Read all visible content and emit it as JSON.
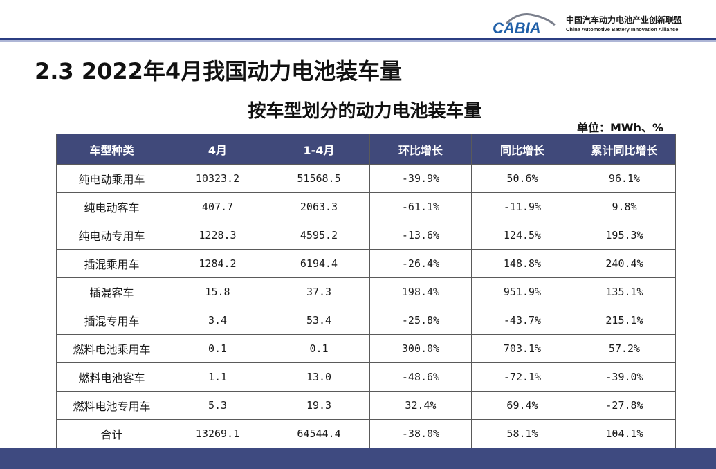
{
  "header": {
    "logo_mark": "CABIA",
    "logo_cn": "中国汽车动力电池产业创新联盟",
    "logo_en": "China Automotive Battery Innovation Alliance"
  },
  "slide_title": "2.3  2022年4月我国动力电池装车量",
  "table_title": "按车型划分的动力电池装车量",
  "unit": "单位：MWh、%",
  "table": {
    "columns": [
      "车型种类",
      "4月",
      "1-4月",
      "环比增长",
      "同比增长",
      "累计同比增长"
    ],
    "rows": [
      [
        "纯电动乘用车",
        "10323.2",
        "51568.5",
        "-39.9%",
        "50.6%",
        "96.1%"
      ],
      [
        "纯电动客车",
        "407.7",
        "2063.3",
        "-61.1%",
        "-11.9%",
        "9.8%"
      ],
      [
        "纯电动专用车",
        "1228.3",
        "4595.2",
        "-13.6%",
        "124.5%",
        "195.3%"
      ],
      [
        "插混乘用车",
        "1284.2",
        "6194.4",
        "-26.4%",
        "148.8%",
        "240.4%"
      ],
      [
        "插混客车",
        "15.8",
        "37.3",
        "198.4%",
        "951.9%",
        "135.1%"
      ],
      [
        "插混专用车",
        "3.4",
        "53.4",
        "-25.8%",
        "-43.7%",
        "215.1%"
      ],
      [
        "燃料电池乘用车",
        "0.1",
        "0.1",
        "300.0%",
        "703.1%",
        "57.2%"
      ],
      [
        "燃料电池客车",
        "1.1",
        "13.0",
        "-48.6%",
        "-72.1%",
        "-39.0%"
      ],
      [
        "燃料电池专用车",
        "5.3",
        "19.3",
        "32.4%",
        "69.4%",
        "-27.8%"
      ],
      [
        "合计",
        "13269.1",
        "64544.4",
        "-38.0%",
        "58.1%",
        "104.1%"
      ]
    ]
  },
  "colors": {
    "header_fill": "#40497a",
    "accent_line": "#2b3d82",
    "footer_bar": "#3e4a80",
    "logo_blue": "#1f5fa8"
  }
}
